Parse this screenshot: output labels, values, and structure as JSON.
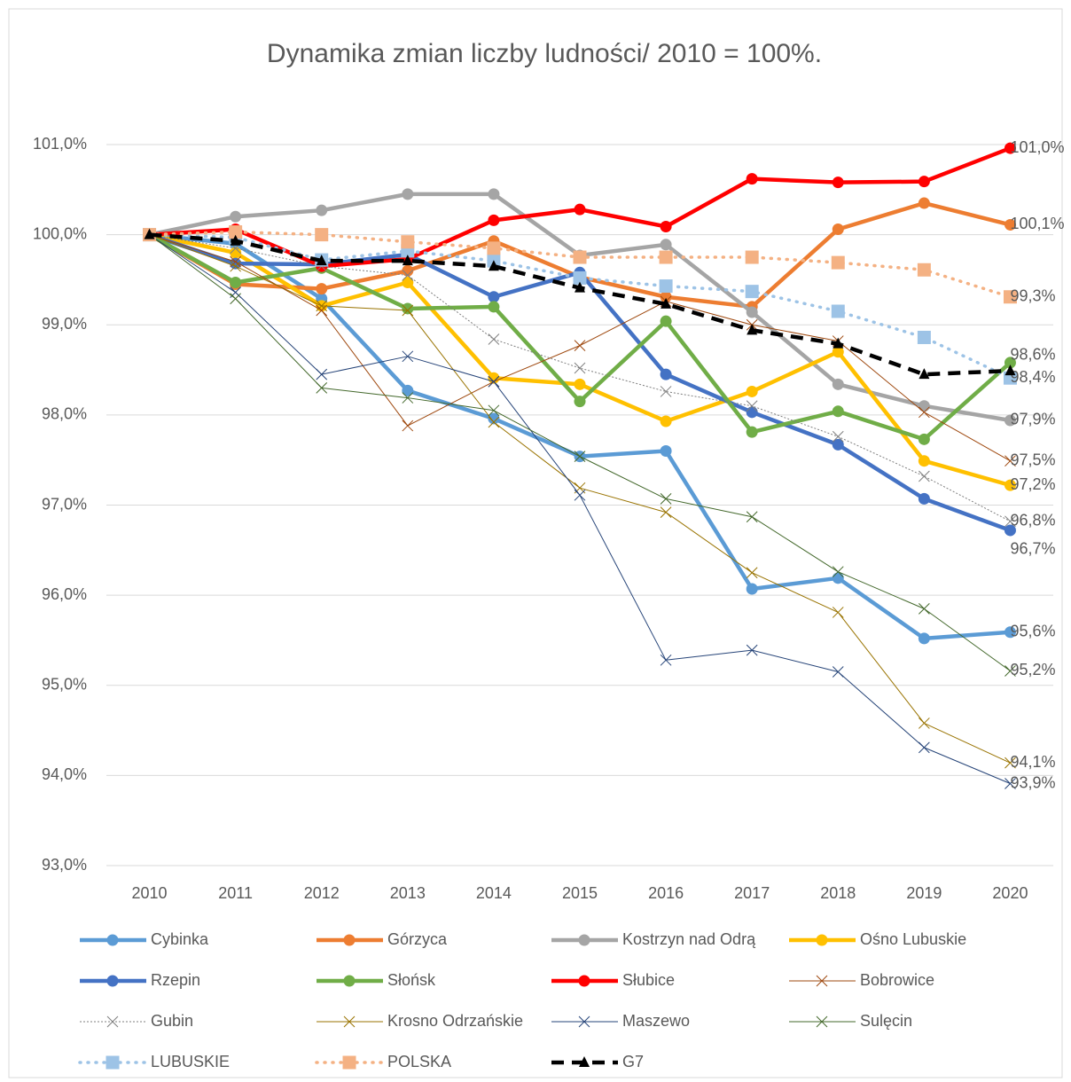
{
  "chart_data": {
    "type": "line",
    "title": "Dynamika zmian liczby ludności/ 2010 = 100%.",
    "categories": [
      "2010",
      "2011",
      "2012",
      "2013",
      "2014",
      "2015",
      "2016",
      "2017",
      "2018",
      "2019",
      "2020"
    ],
    "ylim": [
      93,
      101
    ],
    "yticks": [
      {
        "value": 93,
        "label": "93,0%"
      },
      {
        "value": 94,
        "label": "94,0%"
      },
      {
        "value": 95,
        "label": "95,0%"
      },
      {
        "value": 96,
        "label": "96,0%"
      },
      {
        "value": 97,
        "label": "97,0%"
      },
      {
        "value": 98,
        "label": "98,0%"
      },
      {
        "value": 99,
        "label": "99,0%"
      },
      {
        "value": 100,
        "label": "100,0%"
      },
      {
        "value": 101,
        "label": "101,0%"
      }
    ],
    "grid": true,
    "legend": "bottom",
    "series": [
      {
        "name": "Cybinka",
        "color": "#5b9bd5",
        "line_style": "solid",
        "marker": "circle",
        "values": [
          100,
          99.9,
          99.29,
          98.27,
          97.96,
          97.54,
          97.6,
          96.07,
          96.19,
          95.52,
          95.59
        ],
        "value_labels": [
          null,
          null,
          null,
          null,
          null,
          null,
          null,
          null,
          null,
          null,
          "95,6%"
        ]
      },
      {
        "name": "Górzyca",
        "color": "#ed7d31",
        "line_style": "solid",
        "marker": "circle",
        "values": [
          100,
          99.45,
          99.4,
          99.6,
          99.93,
          99.53,
          99.31,
          99.2,
          100.06,
          100.35,
          100.11
        ],
        "value_labels": [
          null,
          null,
          null,
          null,
          null,
          null,
          null,
          null,
          null,
          null,
          "100,1%"
        ]
      },
      {
        "name": "Kostrzyn nad Odrą",
        "color": "#a5a5a5",
        "line_style": "solid",
        "marker": "circle",
        "values": [
          100,
          100.2,
          100.27,
          100.45,
          100.45,
          99.77,
          99.89,
          99.14,
          98.34,
          98.1,
          97.94
        ],
        "value_labels": [
          null,
          null,
          null,
          null,
          null,
          null,
          null,
          null,
          null,
          null,
          "97,9%"
        ]
      },
      {
        "name": "Ośno Lubuskie",
        "color": "#ffc000",
        "line_style": "solid",
        "marker": "circle",
        "values": [
          100,
          99.8,
          99.21,
          99.47,
          98.41,
          98.34,
          97.93,
          98.26,
          98.7,
          97.49,
          97.22
        ],
        "value_labels": [
          null,
          null,
          null,
          null,
          null,
          null,
          null,
          null,
          null,
          null,
          "97,2%"
        ]
      },
      {
        "name": "Rzepin",
        "color": "#4472c4",
        "line_style": "solid",
        "marker": "circle",
        "values": [
          100,
          99.68,
          99.67,
          99.78,
          99.31,
          99.58,
          98.45,
          98.03,
          97.67,
          97.07,
          96.72
        ],
        "value_labels": [
          null,
          null,
          null,
          null,
          null,
          null,
          null,
          null,
          null,
          null,
          "96,7%"
        ]
      },
      {
        "name": "Słońsk",
        "color": "#70ad47",
        "line_style": "solid",
        "marker": "circle",
        "values": [
          100,
          99.47,
          99.63,
          99.18,
          99.2,
          98.15,
          99.04,
          97.81,
          98.04,
          97.73,
          98.58
        ],
        "value_labels": [
          null,
          null,
          null,
          null,
          null,
          null,
          null,
          null,
          null,
          null,
          "98,6%"
        ]
      },
      {
        "name": "Słubice",
        "color": "#ff0000",
        "line_style": "solid",
        "marker": "circle",
        "values": [
          100,
          100.06,
          99.65,
          99.73,
          100.16,
          100.28,
          100.09,
          100.62,
          100.58,
          100.59,
          100.96
        ],
        "value_labels": [
          null,
          null,
          null,
          null,
          null,
          null,
          null,
          null,
          null,
          null,
          "101,0%"
        ]
      },
      {
        "name": "Bobrowice",
        "color": "#9e480e",
        "line_style": "thin",
        "marker": "x",
        "values": [
          100,
          99.7,
          99.16,
          97.88,
          98.37,
          98.77,
          99.26,
          99.0,
          98.82,
          98.03,
          97.49
        ],
        "value_labels": [
          null,
          null,
          null,
          null,
          null,
          null,
          null,
          null,
          null,
          null,
          "97,5%"
        ]
      },
      {
        "name": "Gubin",
        "color": "#7f7f7f",
        "line_style": "dotted-thin",
        "marker": "x",
        "values": [
          100,
          99.85,
          99.65,
          99.55,
          98.84,
          98.52,
          98.26,
          98.1,
          97.76,
          97.32,
          96.82
        ],
        "value_labels": [
          null,
          null,
          null,
          null,
          null,
          null,
          null,
          null,
          null,
          null,
          "96,8%"
        ]
      },
      {
        "name": "Krosno Odrzańskie",
        "color": "#997300",
        "line_style": "thin",
        "marker": "x",
        "values": [
          100,
          99.65,
          99.21,
          99.16,
          97.92,
          97.19,
          96.92,
          96.25,
          95.81,
          94.58,
          94.14
        ],
        "value_labels": [
          null,
          null,
          null,
          null,
          null,
          null,
          null,
          null,
          null,
          null,
          "94,1%"
        ]
      },
      {
        "name": "Maszewo",
        "color": "#264478",
        "line_style": "thin",
        "marker": "x",
        "values": [
          100,
          99.36,
          98.45,
          98.65,
          98.37,
          97.11,
          95.28,
          95.39,
          95.15,
          94.31,
          93.91
        ],
        "value_labels": [
          null,
          null,
          null,
          null,
          null,
          null,
          null,
          null,
          null,
          null,
          "93,9%"
        ]
      },
      {
        "name": "Sulęcin",
        "color": "#43682b",
        "line_style": "thin",
        "marker": "x",
        "values": [
          100,
          99.29,
          98.3,
          98.19,
          98.05,
          97.54,
          97.07,
          96.87,
          96.26,
          95.85,
          95.16
        ],
        "value_labels": [
          null,
          null,
          null,
          null,
          null,
          null,
          null,
          null,
          null,
          null,
          "95,2%"
        ]
      },
      {
        "name": "LUBUSKIE",
        "color": "#9dc3e6",
        "line_style": "dotted",
        "marker": "square",
        "values": [
          100,
          99.97,
          99.72,
          99.82,
          99.71,
          99.52,
          99.43,
          99.37,
          99.15,
          98.86,
          98.41
        ],
        "value_labels": [
          null,
          null,
          null,
          null,
          null,
          null,
          null,
          null,
          null,
          null,
          "98,4%"
        ]
      },
      {
        "name": "POLSKA",
        "color": "#f4b183",
        "line_style": "dotted",
        "marker": "square",
        "values": [
          100,
          100.03,
          100.0,
          99.92,
          99.85,
          99.75,
          99.75,
          99.75,
          99.69,
          99.61,
          99.31
        ],
        "value_labels": [
          null,
          null,
          null,
          null,
          null,
          null,
          null,
          null,
          null,
          null,
          "99,3%"
        ]
      },
      {
        "name": "G7",
        "color": "#000000",
        "line_style": "dashed",
        "marker": "triangle",
        "values": [
          100,
          99.93,
          99.71,
          99.71,
          99.65,
          99.41,
          99.23,
          98.94,
          98.79,
          98.45,
          98.49
        ]
      }
    ]
  }
}
